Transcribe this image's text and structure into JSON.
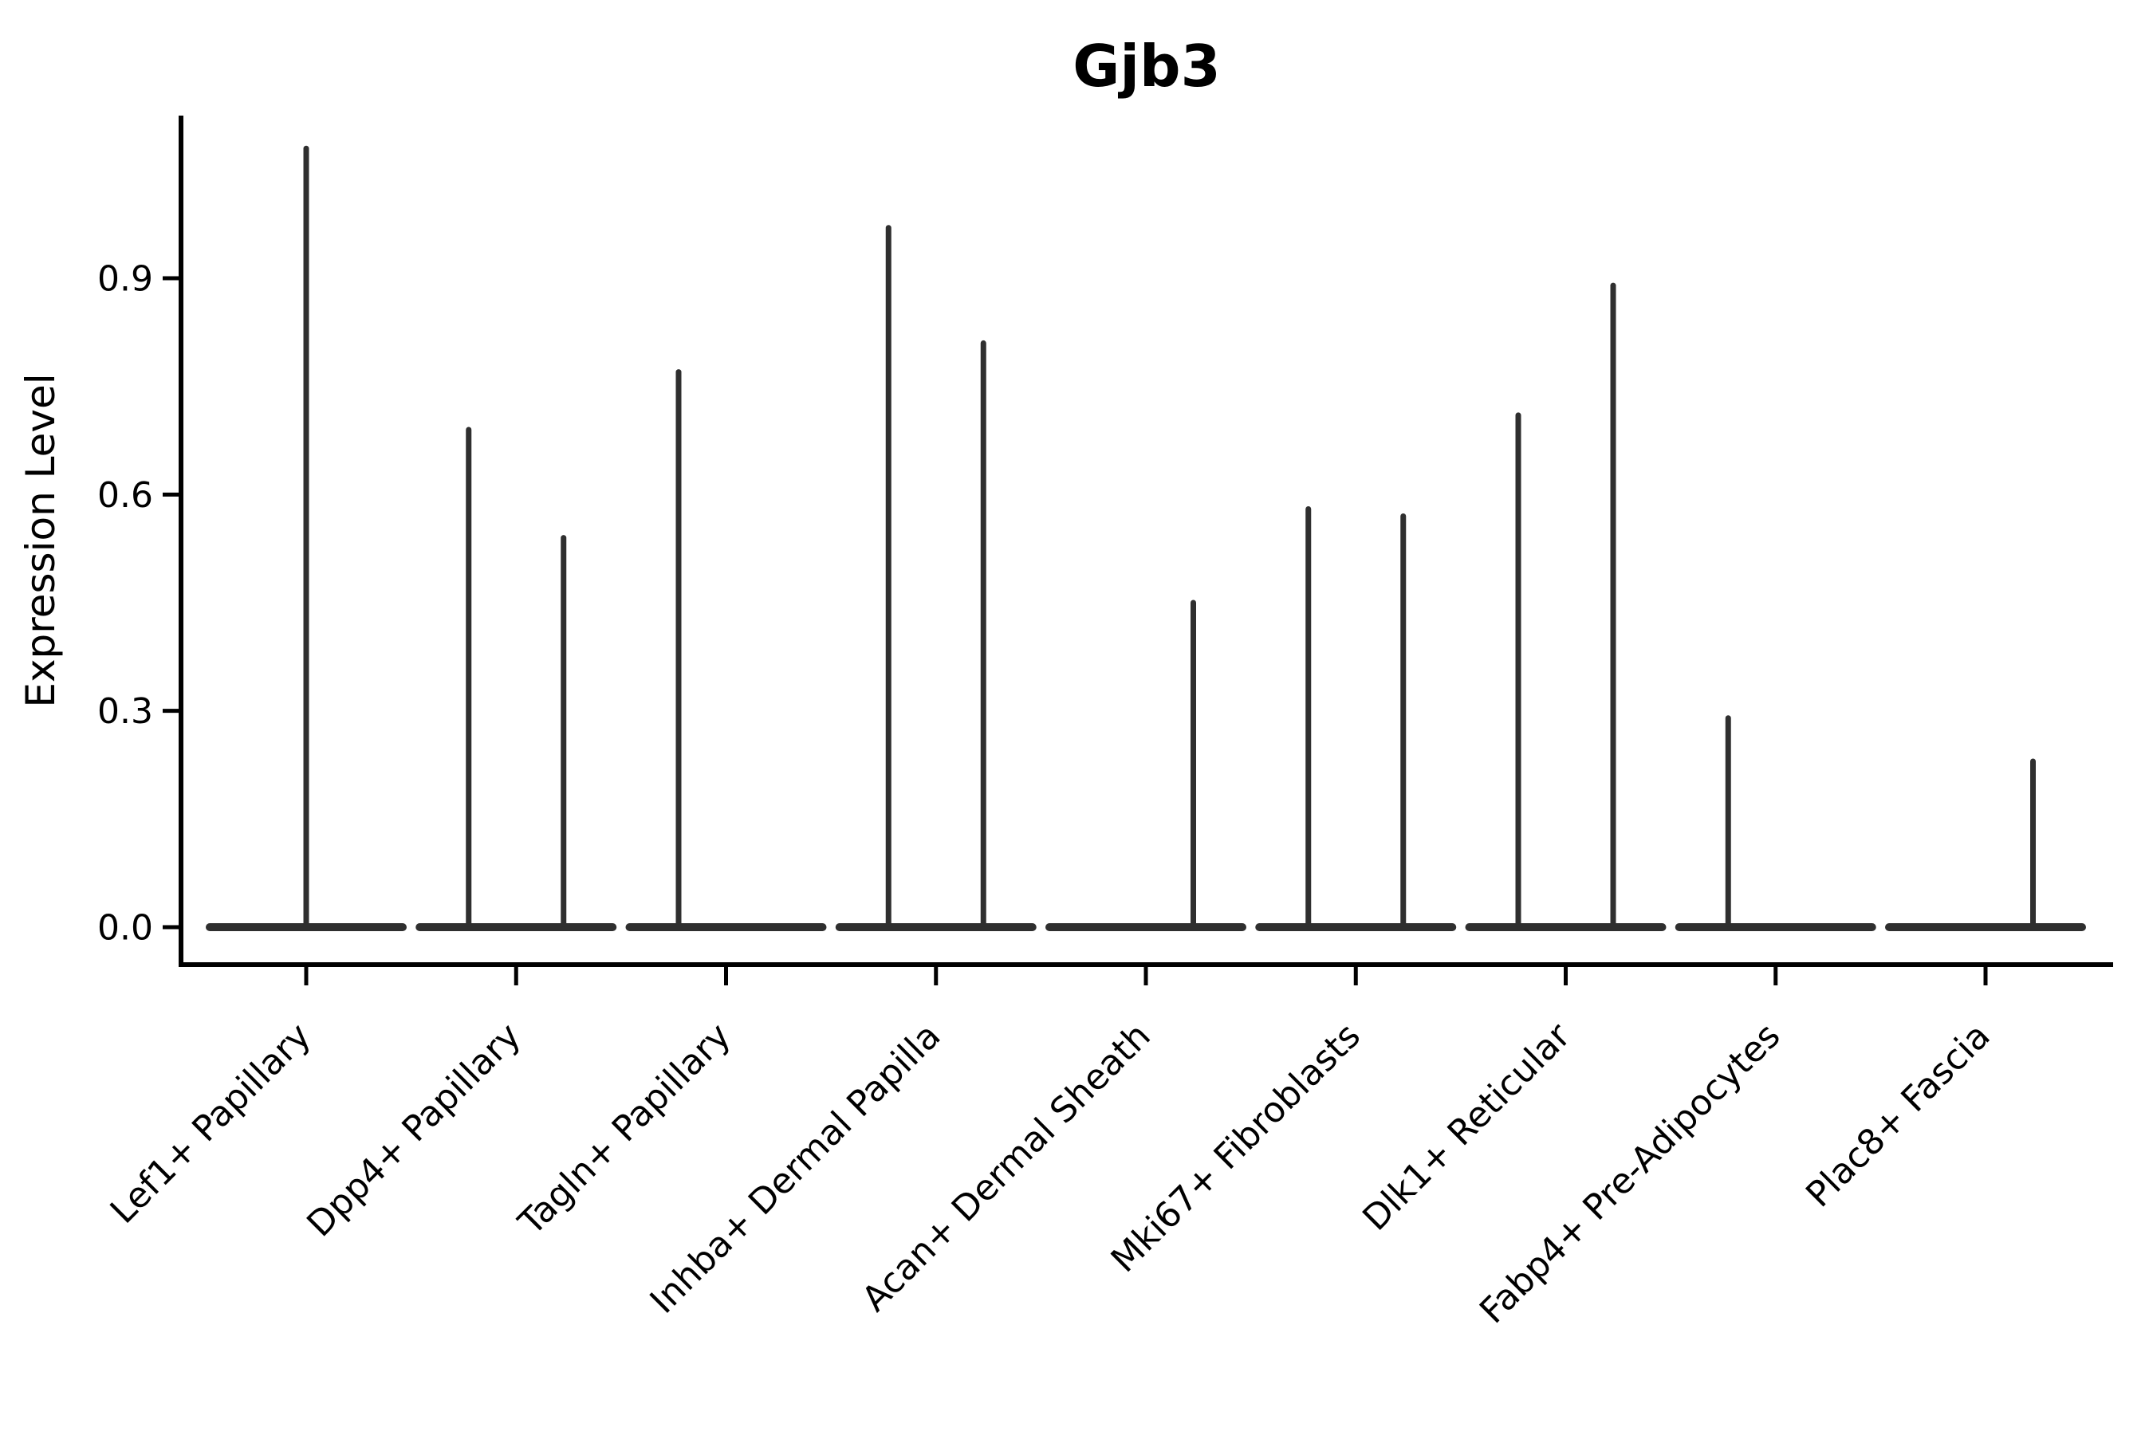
{
  "chart_data": {
    "type": "violin",
    "title": "Gjb3",
    "xlabel": "",
    "ylabel": "Expression Level",
    "grid": false,
    "legend_position": "none",
    "ylim": [
      -0.05,
      1.13
    ],
    "yticks": [
      {
        "value": 0.0,
        "label": "0.0"
      },
      {
        "value": 0.3,
        "label": "0.3"
      },
      {
        "value": 0.6,
        "label": "0.6"
      },
      {
        "value": 0.9,
        "label": "0.9"
      }
    ],
    "categories": [
      "Lef1+ Papillary",
      "Dpp4+ Papillary",
      "Tagln+ Papillary",
      "Inhba+ Dermal Papilla",
      "Acan+ Dermal Sheath",
      "Mki67+ Fibroblasts",
      "Dlk1+ Reticular",
      "Fabp4+ Pre-Adipocytes",
      "Plac8+ Fascia"
    ],
    "violins": [
      {
        "category": "Lef1+ Papillary",
        "spikes": [
          {
            "position": "center",
            "max": 1.08
          }
        ]
      },
      {
        "category": "Dpp4+ Papillary",
        "spikes": [
          {
            "position": "left",
            "max": 0.69
          },
          {
            "position": "right",
            "max": 0.54
          }
        ]
      },
      {
        "category": "Tagln+ Papillary",
        "spikes": [
          {
            "position": "left",
            "max": 0.77
          }
        ]
      },
      {
        "category": "Inhba+ Dermal Papilla",
        "spikes": [
          {
            "position": "left",
            "max": 0.97
          },
          {
            "position": "right",
            "max": 0.81
          }
        ]
      },
      {
        "category": "Acan+ Dermal Sheath",
        "spikes": [
          {
            "position": "right",
            "max": 0.45
          }
        ]
      },
      {
        "category": "Mki67+ Fibroblasts",
        "spikes": [
          {
            "position": "left",
            "max": 0.58
          },
          {
            "position": "right",
            "max": 0.57
          }
        ]
      },
      {
        "category": "Dlk1+ Reticular",
        "spikes": [
          {
            "position": "left",
            "max": 0.71
          },
          {
            "position": "right",
            "max": 0.89
          }
        ]
      },
      {
        "category": "Fabp4+ Pre-Adipocytes",
        "spikes": [
          {
            "position": "left",
            "max": 0.29
          }
        ]
      },
      {
        "category": "Plac8+ Fascia",
        "spikes": [
          {
            "position": "right",
            "max": 0.23
          }
        ]
      }
    ],
    "colors": {
      "background": "#ffffff",
      "axis": "#000000",
      "text": "#000000",
      "violin_stroke": "#2f2f2f"
    }
  }
}
